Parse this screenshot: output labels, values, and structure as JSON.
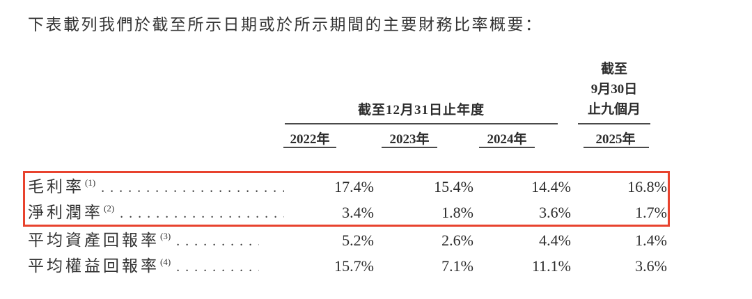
{
  "title": "下表載列我們於截至所示日期或於所示期間的主要財務比率概要：",
  "table": {
    "column_groups": {
      "annual": "截至12月31日止年度",
      "nine_months_line1": "截至",
      "nine_months_line2": "9月30日",
      "nine_months_line3": "止九個月"
    },
    "year_headers": [
      "2022年",
      "2023年",
      "2024年",
      "2025年"
    ],
    "rows": [
      {
        "label": "毛利率",
        "footnote": "(1)",
        "values": [
          "17.4%",
          "15.4%",
          "14.4%",
          "16.8%"
        ]
      },
      {
        "label": "淨利潤率",
        "footnote": "(2)",
        "values": [
          "3.4%",
          "1.8%",
          "3.6%",
          "1.7%"
        ]
      },
      {
        "label": "平均資產回報率",
        "footnote": "(3)",
        "values": [
          "5.2%",
          "2.6%",
          "4.4%",
          "1.4%"
        ]
      },
      {
        "label": "平均權益回報率",
        "footnote": "(4)",
        "values": [
          "15.7%",
          "7.1%",
          "11.1%",
          "3.6%"
        ]
      }
    ],
    "highlight_color": "#e8432e",
    "highlighted_row_indexes": [
      0,
      1
    ]
  }
}
